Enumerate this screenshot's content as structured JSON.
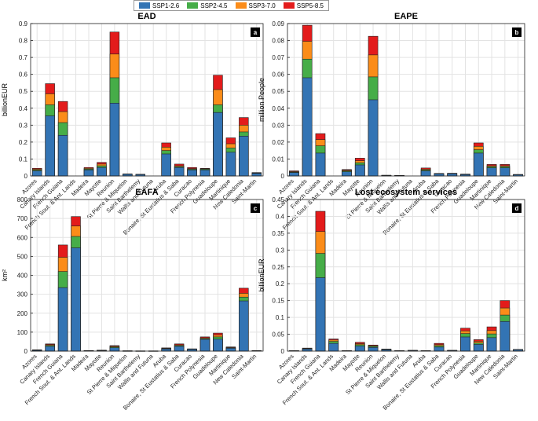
{
  "legend": [
    {
      "label": "SSP1-2.6",
      "color": "#3374b4"
    },
    {
      "label": "SSP2-4.5",
      "color": "#46ad48"
    },
    {
      "label": "SSP3-7.0",
      "color": "#fb8c19"
    },
    {
      "label": "SSP5-8.5",
      "color": "#e31b1b"
    }
  ],
  "chart_data": [
    {
      "type": "bar",
      "title": "EAD",
      "ylabel": "billionEUR",
      "panel_letter": "a",
      "ylim": [
        0,
        0.9
      ],
      "yticks": [
        "0",
        "0.1",
        "0.2",
        "0.3",
        "0.4",
        "0.5",
        "0.6",
        "0.7",
        "0.8",
        "0.9"
      ],
      "yticks_values": [
        0,
        0.1,
        0.2,
        0.3,
        0.4,
        0.5,
        0.6,
        0.7,
        0.8,
        0.9
      ],
      "categories": [
        "Azores",
        "Canary Islands",
        "French Guiana",
        "French Sout. & Ant. Lands",
        "Madeira",
        "Mayotte",
        "Reunion",
        "St Pierre & Miquelon",
        "Saint Barthelemy",
        "Wallis and Futuna",
        "Aruba",
        "Bonaire, St Eustatius & Saba",
        "Curacao",
        "French Polynesia",
        "Guadeloupe",
        "Martinique",
        "New Caledonia",
        "Saint-Martin"
      ],
      "series": [
        {
          "name": "SSP1-2.6",
          "values": [
            0.03,
            0.355,
            0.24,
            0,
            0.035,
            0.05,
            0.43,
            0.01,
            0.008,
            0,
            0.13,
            0.05,
            0.035,
            0.035,
            0.375,
            0.14,
            0.235,
            0.015
          ]
        },
        {
          "name": "SSP2-4.5",
          "values": [
            0.035,
            0.42,
            0.315,
            0,
            0.04,
            0.06,
            0.58,
            0.01,
            0.009,
            0,
            0.15,
            0.055,
            0.04,
            0.04,
            0.42,
            0.165,
            0.26,
            0.017
          ]
        },
        {
          "name": "SSP3-7.0",
          "values": [
            0.04,
            0.485,
            0.38,
            0,
            0.045,
            0.07,
            0.72,
            0.011,
            0.009,
            0,
            0.17,
            0.06,
            0.043,
            0.042,
            0.51,
            0.19,
            0.3,
            0.018
          ]
        },
        {
          "name": "SSP5-8.5",
          "values": [
            0.045,
            0.545,
            0.44,
            0,
            0.05,
            0.08,
            0.85,
            0.012,
            0.01,
            0,
            0.195,
            0.07,
            0.05,
            0.045,
            0.595,
            0.225,
            0.345,
            0.02
          ]
        }
      ]
    },
    {
      "type": "bar",
      "title": "EAPE",
      "ylabel": "million People",
      "panel_letter": "b",
      "ylim": [
        0,
        0.09
      ],
      "yticks": [
        "0",
        "0.01",
        "0.02",
        "0.03",
        "0.04",
        "0.05",
        "0.06",
        "0.07",
        "0.08",
        "0.09"
      ],
      "yticks_values": [
        0,
        0.01,
        0.02,
        0.03,
        0.04,
        0.05,
        0.06,
        0.07,
        0.08,
        0.09
      ],
      "categories": [
        "Azores",
        "Canary Islands",
        "French Guiana",
        "French Sout. & Ant. Lands",
        "Madeira",
        "Mayotte",
        "Reunion",
        "St Pierre & Miquelon",
        "Saint Barthelemy",
        "Wallis and Futuna",
        "Aruba",
        "Bonaire, St Eustatius & Saba",
        "Curacao",
        "French Polynesia",
        "Guadeloupe",
        "Martinique",
        "New Caledonia",
        "Saint-Martin"
      ],
      "series": [
        {
          "name": "SSP1-2.6",
          "values": [
            0.002,
            0.058,
            0.0135,
            0,
            0.0025,
            0.0065,
            0.045,
            0.0003,
            0.0002,
            0,
            0.003,
            0.0012,
            0.0013,
            0.0008,
            0.0135,
            0.0048,
            0.0048,
            0.0007
          ]
        },
        {
          "name": "SSP2-4.5",
          "values": [
            0.0023,
            0.069,
            0.0178,
            0,
            0.003,
            0.0078,
            0.0585,
            0.0003,
            0.0002,
            0,
            0.0035,
            0.0013,
            0.0014,
            0.0009,
            0.0155,
            0.0055,
            0.0055,
            0.0008
          ]
        },
        {
          "name": "SSP3-7.0",
          "values": [
            0.0026,
            0.0795,
            0.0215,
            0,
            0.0034,
            0.009,
            0.0715,
            0.0004,
            0.0002,
            0,
            0.004,
            0.0014,
            0.0015,
            0.001,
            0.0175,
            0.006,
            0.006,
            0.0008
          ]
        },
        {
          "name": "SSP5-8.5",
          "values": [
            0.003,
            0.089,
            0.025,
            0,
            0.0038,
            0.0105,
            0.0825,
            0.0004,
            0.0003,
            0,
            0.0047,
            0.0015,
            0.0016,
            0.0011,
            0.0195,
            0.0068,
            0.0068,
            0.0009
          ]
        }
      ]
    },
    {
      "type": "bar",
      "title": "EAFA",
      "ylabel": "km²",
      "panel_letter": "c",
      "ylim": [
        0,
        800
      ],
      "yticks": [
        "0",
        "100",
        "200",
        "300",
        "400",
        "500",
        "600",
        "700",
        "800"
      ],
      "yticks_values": [
        0,
        100,
        200,
        300,
        400,
        500,
        600,
        700,
        800
      ],
      "categories": [
        "Azores",
        "Canary Islands",
        "French Guiana",
        "French Sout. & Ant. Lands",
        "Madeira",
        "Mayotte",
        "Reunion",
        "St Pierre & Miquelon",
        "Saint Barthelemy",
        "Wallis and Futuna",
        "Aruba",
        "Bonaire, St Eustatius & Saba",
        "Curacao",
        "French Polynesia",
        "Guadeloupe",
        "Martinique",
        "New Caledonia",
        "Saint-Martin"
      ],
      "series": [
        {
          "name": "SSP1-2.6",
          "values": [
            4,
            25,
            335,
            545,
            2,
            3,
            18,
            1,
            1,
            1,
            11,
            25,
            9,
            62,
            63,
            15,
            265,
            2
          ]
        },
        {
          "name": "SSP2-4.5",
          "values": [
            5,
            30,
            420,
            605,
            2,
            4,
            22,
            1,
            1,
            1,
            13,
            29,
            10,
            66,
            75,
            17,
            285,
            2
          ]
        },
        {
          "name": "SSP3-7.0",
          "values": [
            6,
            34,
            495,
            660,
            3,
            4,
            26,
            1,
            1,
            1,
            15,
            33,
            11,
            70,
            85,
            19,
            305,
            3
          ]
        },
        {
          "name": "SSP5-8.5",
          "values": [
            7,
            38,
            560,
            710,
            3,
            5,
            29,
            2,
            1,
            1,
            17,
            38,
            12,
            75,
            95,
            22,
            332,
            3
          ]
        }
      ]
    },
    {
      "type": "bar",
      "title": "Lost ecosystem services",
      "ylabel": "billionEUR",
      "panel_letter": "d",
      "ylim": [
        0,
        0.45
      ],
      "yticks": [
        "0",
        "0.05",
        "0.1",
        "0.15",
        "0.2",
        "0.25",
        "0.3",
        "0.35",
        "0.4",
        "0.45"
      ],
      "yticks_values": [
        0,
        0.05,
        0.1,
        0.15,
        0.2,
        0.25,
        0.3,
        0.35,
        0.4,
        0.45
      ],
      "categories": [
        "Azores",
        "Canary Islands",
        "French Guiana",
        "French Sout. & Ant. Lands",
        "Madeira",
        "Mayotte",
        "Reunion",
        "St Pierre & Miquelon",
        "Saint Barthelemy",
        "Wallis and Futuna",
        "Aruba",
        "Bonaire, St Eustatius & Saba",
        "Curacao",
        "French Polynesia",
        "Guadeloupe",
        "Martinique",
        "New Caledonia",
        "Saint-Martin"
      ],
      "series": [
        {
          "name": "SSP1-2.6",
          "values": [
            0.001,
            0.006,
            0.218,
            0.023,
            0.001,
            0.015,
            0.011,
            0.004,
            0.001,
            0.002,
            0.001,
            0.012,
            0.002,
            0.042,
            0.02,
            0.04,
            0.088,
            0.004
          ]
        },
        {
          "name": "SSP2-4.5",
          "values": [
            0.001,
            0.007,
            0.29,
            0.029,
            0.001,
            0.019,
            0.014,
            0.005,
            0.001,
            0.002,
            0.001,
            0.016,
            0.002,
            0.052,
            0.024,
            0.051,
            0.107,
            0.004
          ]
        },
        {
          "name": "SSP3-7.0",
          "values": [
            0.001,
            0.008,
            0.355,
            0.033,
            0.001,
            0.022,
            0.016,
            0.006,
            0.001,
            0.002,
            0.001,
            0.019,
            0.002,
            0.06,
            0.029,
            0.061,
            0.128,
            0.005
          ]
        },
        {
          "name": "SSP5-8.5",
          "values": [
            0.001,
            0.009,
            0.415,
            0.036,
            0.001,
            0.026,
            0.018,
            0.006,
            0.001,
            0.002,
            0.001,
            0.023,
            0.002,
            0.068,
            0.034,
            0.072,
            0.15,
            0.005
          ]
        }
      ]
    }
  ]
}
